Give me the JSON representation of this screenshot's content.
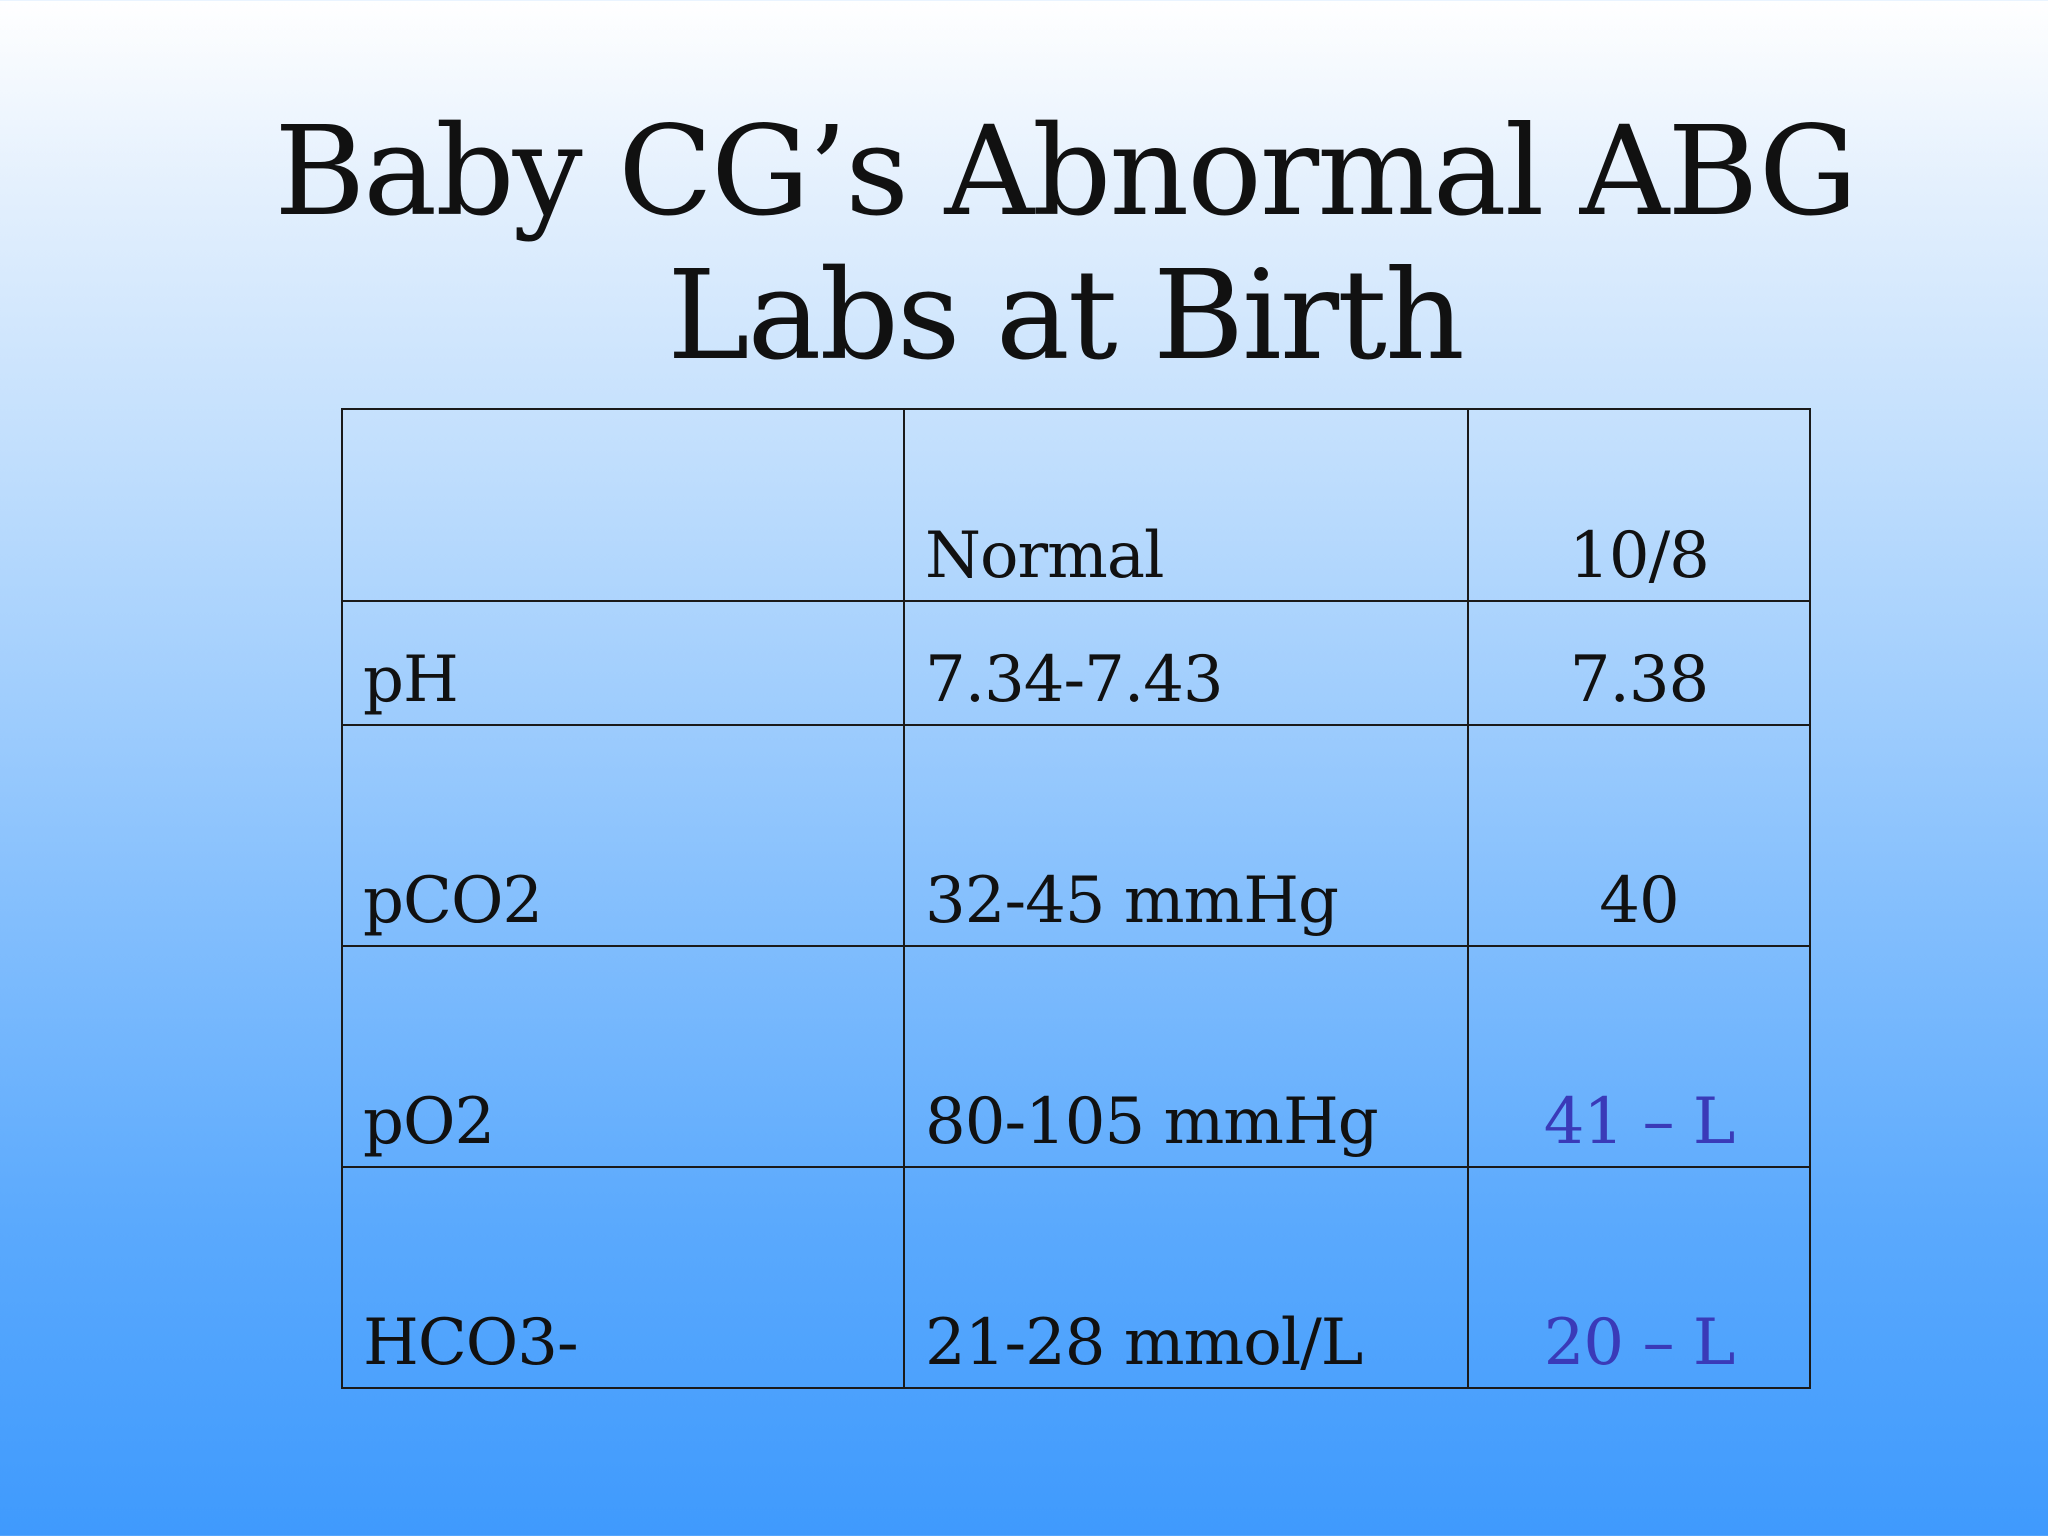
{
  "slide": {
    "title_line1": "Baby CG’s Abnormal ABG",
    "title_line2": "Labs at Birth"
  },
  "colors": {
    "flagged_value": "#3a3ab8",
    "text": "#111111",
    "background_top": "#ffffff",
    "background_bottom": "#3f9afd"
  },
  "table": {
    "headers": [
      "",
      "Normal",
      "10/8"
    ],
    "rows": [
      {
        "test": "pH",
        "normal": "7.34-7.43",
        "result": "7.38",
        "flagged": false
      },
      {
        "test": "pCO2",
        "normal": "32-45 mmHg",
        "result": "40",
        "flagged": false
      },
      {
        "test": "pO2",
        "normal": "80-105 mmHg",
        "result": "41 – L",
        "flagged": true
      },
      {
        "test": "HCO3-",
        "normal": "21-28 mmol/L",
        "result": "20 – L",
        "flagged": true
      }
    ]
  }
}
